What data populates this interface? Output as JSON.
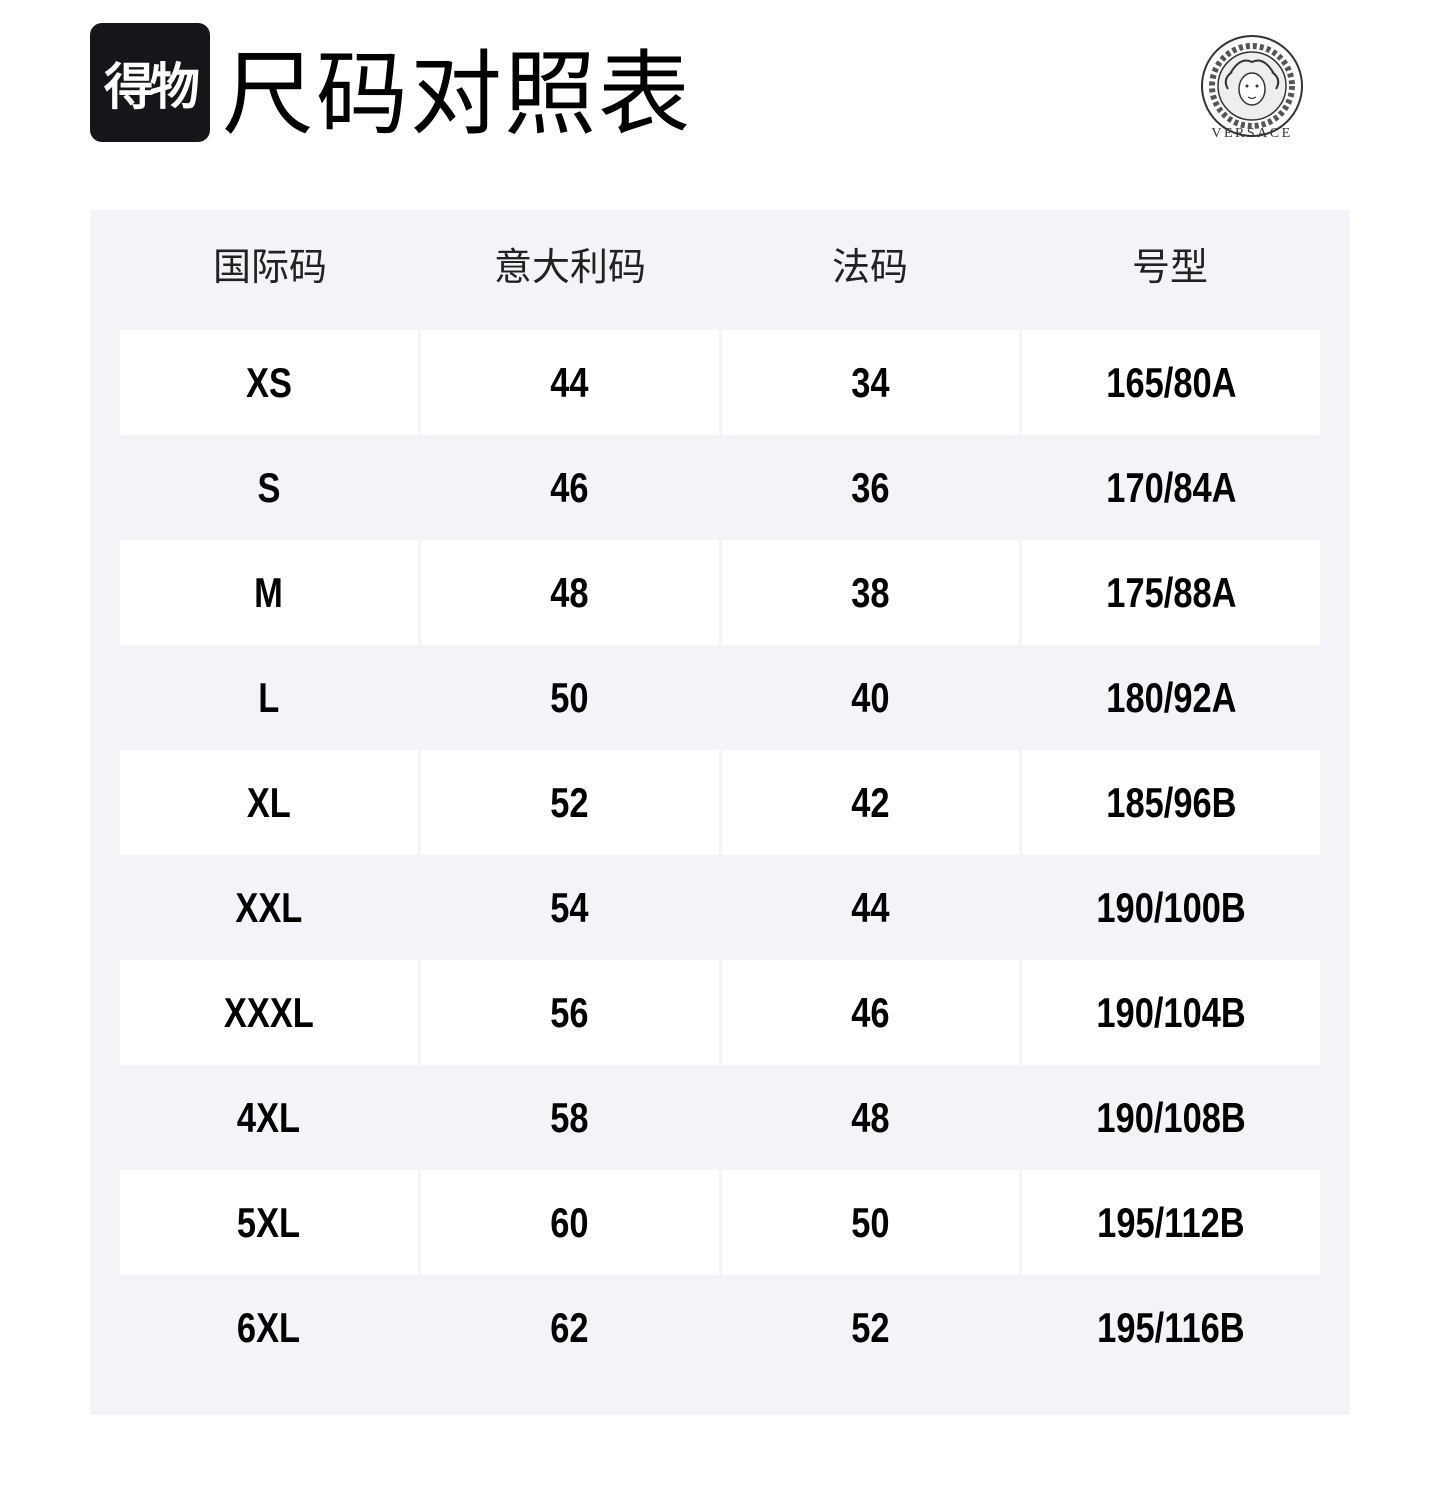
{
  "header": {
    "badge_text": "得物",
    "title": "尺码对照表",
    "brand_logo": "VERSACE"
  },
  "table": {
    "columns": [
      "国际码",
      "意大利码",
      "法码",
      "号型"
    ],
    "rows": [
      [
        "XS",
        "44",
        "34",
        "165/80A"
      ],
      [
        "S",
        "46",
        "36",
        "170/84A"
      ],
      [
        "M",
        "48",
        "38",
        "175/88A"
      ],
      [
        "L",
        "50",
        "40",
        "180/92A"
      ],
      [
        "XL",
        "52",
        "42",
        "185/96B"
      ],
      [
        "XXL",
        "54",
        "44",
        "190/100B"
      ],
      [
        "XXXL",
        "56",
        "46",
        "190/104B"
      ],
      [
        "4XL",
        "58",
        "48",
        "190/108B"
      ],
      [
        "5XL",
        "60",
        "50",
        "195/112B"
      ],
      [
        "6XL",
        "62",
        "52",
        "195/116B"
      ]
    ]
  },
  "colors": {
    "panel": "#f4f4f8",
    "badge": "#16161a",
    "cell": "#ffffff"
  }
}
